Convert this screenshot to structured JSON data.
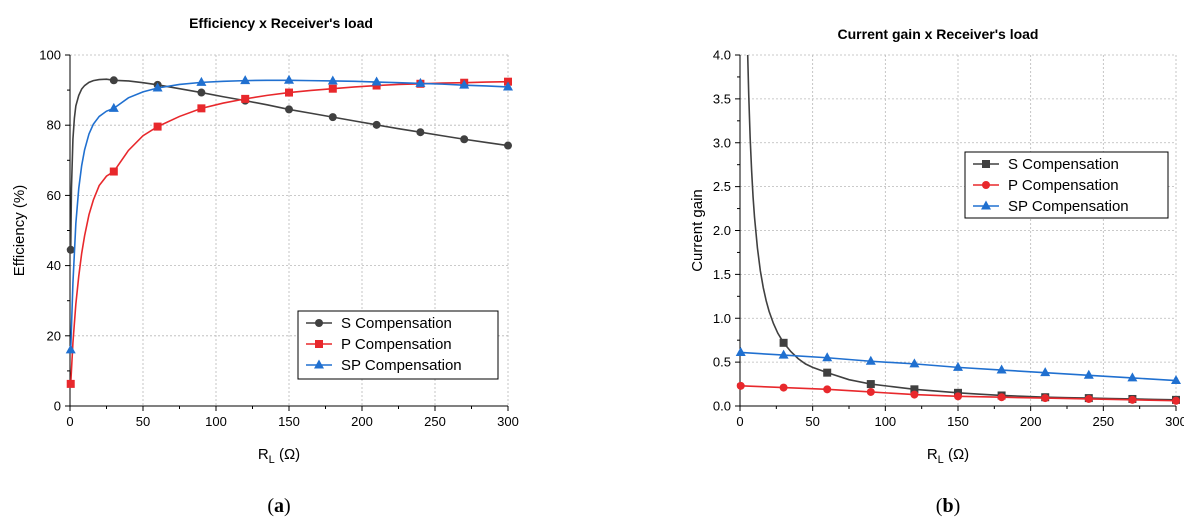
{
  "captions": [
    "a",
    "b"
  ],
  "chart_data": [
    {
      "type": "line",
      "title": "Efficiency x Receiver's load",
      "xlabel": "R",
      "xlabel_sub": "L",
      "xlabel_unit": "(Ω)",
      "ylabel": "Efficiency (%)",
      "xlim": [
        0,
        300
      ],
      "ylim": [
        0,
        100
      ],
      "xticks": [
        0,
        50,
        100,
        150,
        200,
        250,
        300
      ],
      "yticks": [
        0,
        20,
        40,
        60,
        80,
        100
      ],
      "grid": true,
      "legend_position": "bottom-right",
      "series": [
        {
          "name": "S Compensation",
          "color": "#404040",
          "marker": "circle",
          "x": [
            0.5,
            30,
            60,
            90,
            120,
            150,
            180,
            210,
            240,
            270,
            300
          ],
          "y": [
            44.5,
            92.8,
            91.5,
            89.3,
            87,
            84.5,
            82.3,
            80.1,
            78,
            76,
            74.2
          ],
          "curve_x": [
            0.5,
            1,
            2,
            3,
            4,
            6,
            8,
            10,
            13,
            16,
            20,
            25,
            30,
            40,
            50,
            60,
            75,
            90,
            105,
            120,
            135,
            150,
            165,
            180,
            195,
            210,
            225,
            240,
            255,
            270,
            285,
            300
          ],
          "curve_y": [
            44.5,
            62,
            76,
            82,
            85.5,
            88.5,
            90.3,
            91.3,
            92.2,
            92.7,
            93,
            93.1,
            92.8,
            92.6,
            92.1,
            91.5,
            90.4,
            89.3,
            88.1,
            87,
            85.8,
            84.5,
            83.4,
            82.3,
            81.2,
            80.1,
            79,
            78,
            77,
            76,
            75.1,
            74.2
          ]
        },
        {
          "name": "P Compensation",
          "color": "#e8282c",
          "marker": "square",
          "x": [
            0.5,
            30,
            60,
            90,
            120,
            150,
            180,
            210,
            240,
            270,
            300
          ],
          "y": [
            6.3,
            66.8,
            79.6,
            84.8,
            87.5,
            89.3,
            90.4,
            91.3,
            91.8,
            92.1,
            92.4
          ],
          "curve_x": [
            0.5,
            2,
            4,
            6,
            8,
            10,
            13,
            16,
            20,
            25,
            30,
            40,
            50,
            60,
            75,
            90,
            105,
            120,
            135,
            150,
            165,
            180,
            195,
            210,
            225,
            240,
            255,
            270,
            285,
            300
          ],
          "curve_y": [
            6.3,
            18,
            29,
            37,
            43.5,
            48.5,
            54.5,
            58.7,
            62.8,
            65.5,
            66.8,
            72.8,
            77,
            79.6,
            82.5,
            84.8,
            86.3,
            87.5,
            88.5,
            89.3,
            89.9,
            90.4,
            90.9,
            91.3,
            91.6,
            91.8,
            92,
            92.1,
            92.3,
            92.4
          ]
        },
        {
          "name": "SP Compensation",
          "color": "#2070d0",
          "marker": "triangle",
          "x": [
            0.5,
            30,
            60,
            90,
            120,
            150,
            180,
            210,
            240,
            270,
            300
          ],
          "y": [
            16,
            84.8,
            90.6,
            92.2,
            92.7,
            92.8,
            92.6,
            92.3,
            91.9,
            91.4,
            90.9
          ],
          "curve_x": [
            0.5,
            2,
            4,
            6,
            8,
            10,
            13,
            16,
            20,
            25,
            30,
            40,
            50,
            60,
            75,
            90,
            105,
            120,
            135,
            150,
            165,
            180,
            195,
            210,
            225,
            240,
            255,
            270,
            285,
            300
          ],
          "curve_y": [
            16,
            35,
            52,
            62,
            68.5,
            73,
            77.5,
            80.3,
            82.5,
            84,
            84.8,
            87.8,
            89.5,
            90.6,
            91.6,
            92.2,
            92.5,
            92.7,
            92.8,
            92.8,
            92.7,
            92.6,
            92.5,
            92.3,
            92.1,
            91.9,
            91.7,
            91.4,
            91.2,
            90.9
          ]
        }
      ]
    },
    {
      "type": "line",
      "title": "Current gain x Receiver's load",
      "xlabel": "R",
      "xlabel_sub": "L",
      "xlabel_unit": "(Ω)",
      "ylabel": "Current gain",
      "xlim": [
        0,
        300
      ],
      "ylim": [
        0,
        4
      ],
      "xticks": [
        0,
        50,
        100,
        150,
        200,
        250,
        300
      ],
      "yticks": [
        0.0,
        0.5,
        1.0,
        1.5,
        2.0,
        2.5,
        3.0,
        3.5,
        4.0
      ],
      "ytick_labels": [
        "0.0",
        "0.5",
        "1.0",
        "1.5",
        "2.0",
        "2.5",
        "3.0",
        "3.5",
        "4.0"
      ],
      "grid": true,
      "legend_position": "top-right",
      "series": [
        {
          "name": "S Compensation",
          "color": "#404040",
          "marker": "square",
          "x": [
            30,
            60,
            90,
            120,
            150,
            180,
            210,
            240,
            270,
            300
          ],
          "y": [
            0.72,
            0.38,
            0.25,
            0.19,
            0.15,
            0.12,
            0.1,
            0.09,
            0.08,
            0.07
          ],
          "curve_x": [
            5.3,
            6,
            7,
            8,
            9,
            10,
            12,
            14,
            16,
            18,
            20,
            23,
            26,
            30,
            35,
            40,
            45,
            50,
            60,
            75,
            90,
            105,
            120,
            135,
            150,
            165,
            180,
            195,
            210,
            225,
            240,
            255,
            270,
            285,
            300
          ],
          "curve_y": [
            4.0,
            3.55,
            3.05,
            2.68,
            2.38,
            2.15,
            1.8,
            1.54,
            1.35,
            1.2,
            1.08,
            0.94,
            0.83,
            0.72,
            0.62,
            0.54,
            0.48,
            0.44,
            0.38,
            0.3,
            0.25,
            0.22,
            0.19,
            0.17,
            0.15,
            0.135,
            0.12,
            0.11,
            0.1,
            0.095,
            0.09,
            0.085,
            0.08,
            0.075,
            0.07
          ]
        },
        {
          "name": "P Compensation",
          "color": "#e8282c",
          "marker": "circle",
          "x": [
            0.5,
            30,
            60,
            90,
            120,
            150,
            180,
            210,
            240,
            270,
            300
          ],
          "y": [
            0.23,
            0.21,
            0.19,
            0.16,
            0.13,
            0.11,
            0.1,
            0.09,
            0.08,
            0.07,
            0.06
          ],
          "curve_x": [
            0.5,
            30,
            60,
            90,
            120,
            150,
            180,
            210,
            240,
            270,
            300
          ],
          "curve_y": [
            0.23,
            0.21,
            0.19,
            0.16,
            0.13,
            0.11,
            0.1,
            0.09,
            0.08,
            0.07,
            0.06
          ]
        },
        {
          "name": "SP Compensation",
          "color": "#2070d0",
          "marker": "triangle",
          "x": [
            0.5,
            30,
            60,
            90,
            120,
            150,
            180,
            210,
            240,
            270,
            300
          ],
          "y": [
            0.61,
            0.58,
            0.55,
            0.51,
            0.48,
            0.44,
            0.41,
            0.38,
            0.35,
            0.32,
            0.29
          ],
          "curve_x": [
            0.5,
            30,
            60,
            90,
            120,
            150,
            180,
            210,
            240,
            270,
            300
          ],
          "curve_y": [
            0.61,
            0.58,
            0.55,
            0.51,
            0.48,
            0.44,
            0.41,
            0.38,
            0.35,
            0.32,
            0.29
          ]
        }
      ]
    }
  ]
}
